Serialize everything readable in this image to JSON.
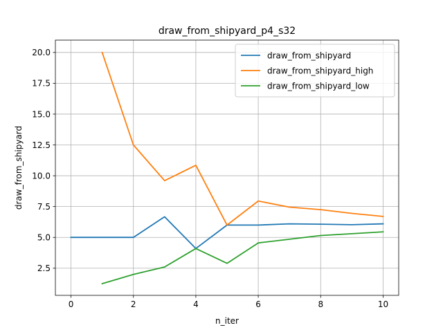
{
  "chart_data": {
    "type": "line",
    "title": "draw_from_shipyard_p4_s32",
    "xlabel": "n_iter",
    "ylabel": "draw_from_shipyard",
    "xlim": [
      -0.5,
      10.5
    ],
    "ylim": [
      0.3,
      21.0
    ],
    "x_ticks": [
      0,
      2,
      4,
      6,
      8,
      10
    ],
    "x_tick_labels": [
      "0",
      "2",
      "4",
      "6",
      "8",
      "10"
    ],
    "y_ticks": [
      2.5,
      5.0,
      7.5,
      10.0,
      12.5,
      15.0,
      17.5,
      20.0
    ],
    "y_tick_labels": [
      "2.5",
      "5.0",
      "7.5",
      "10.0",
      "12.5",
      "15.0",
      "17.5",
      "20.0"
    ],
    "grid": true,
    "legend_position": "top-right",
    "series": [
      {
        "name": "draw_from_shipyard",
        "color": "#1f77b4",
        "x": [
          0,
          1,
          2,
          3,
          4,
          5,
          6,
          7,
          8,
          9,
          10
        ],
        "y": [
          5.0,
          5.0,
          5.0,
          6.67,
          4.1,
          6.0,
          6.0,
          6.1,
          6.07,
          6.03,
          6.1
        ]
      },
      {
        "name": "draw_from_shipyard_high",
        "color": "#ff7f0e",
        "x": [
          1,
          2,
          3,
          4,
          5,
          6,
          7,
          8,
          9,
          10
        ],
        "y": [
          20.0,
          12.5,
          9.6,
          10.85,
          6.0,
          7.95,
          7.45,
          7.25,
          6.95,
          6.7
        ]
      },
      {
        "name": "draw_from_shipyard_low",
        "color": "#2ca02c",
        "x": [
          1,
          2,
          3,
          4,
          5,
          6,
          7,
          8,
          9,
          10
        ],
        "y": [
          1.25,
          2.0,
          2.6,
          4.1,
          2.9,
          4.55,
          4.85,
          5.15,
          5.3,
          5.45
        ]
      }
    ]
  }
}
